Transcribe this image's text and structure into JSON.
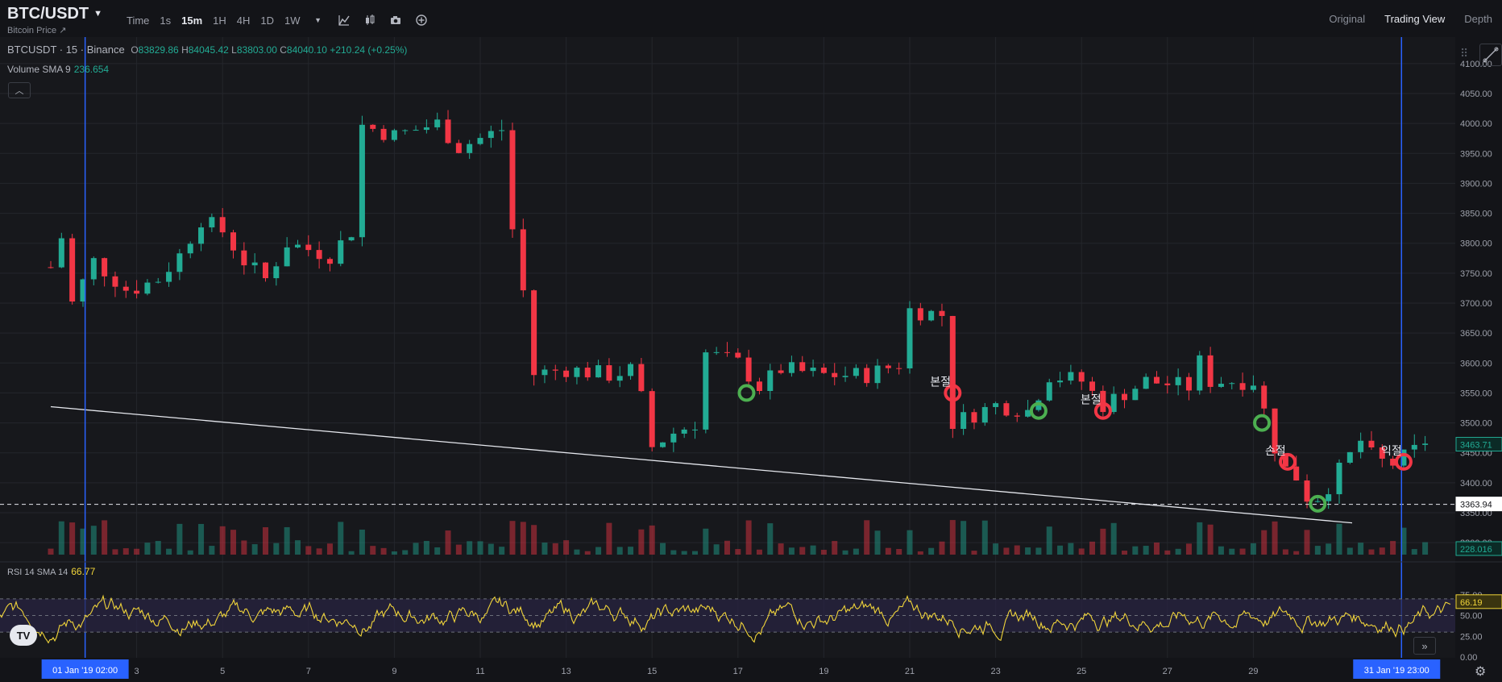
{
  "header": {
    "symbol": "BTC/USDT",
    "subtitle": "Bitcoin Price ↗",
    "timeframes": [
      "Time",
      "1s",
      "15m",
      "1H",
      "4H",
      "1D",
      "1W"
    ],
    "active_timeframe": "15m",
    "views": [
      "Original",
      "Trading View",
      "Depth"
    ],
    "active_view": "Trading View"
  },
  "legend": {
    "title": "BTCUSDT · 15 · Binance",
    "open": "83829.86",
    "high": "84045.42",
    "low": "83803.00",
    "close": "84040.10",
    "change": "+210.24 (+0.25%)",
    "volume_label": "Volume SMA 9",
    "volume_value": "236.654",
    "rsi_label": "RSI 14 SMA 14",
    "rsi_value": "66.77"
  },
  "price_axis": {
    "ticks": [
      "4100.00",
      "4050.00",
      "4000.00",
      "3950.00",
      "3900.00",
      "3850.00",
      "3800.00",
      "3750.00",
      "3700.00",
      "3650.00",
      "3600.00",
      "3550.00",
      "3500.00",
      "3450.00",
      "3400.00",
      "3350.00",
      "3300.00"
    ],
    "last_price": "3463.71",
    "marker_price": "3363.94",
    "volume_tag": "228.016"
  },
  "rsi_axis": {
    "ticks": [
      "75.00",
      "50.00",
      "25.00",
      "0.00"
    ],
    "current": "66.19"
  },
  "time_axis": {
    "ticks": [
      "3",
      "5",
      "7",
      "9",
      "11",
      "13",
      "15",
      "17",
      "19",
      "21",
      "23",
      "25",
      "27",
      "29"
    ],
    "start_label": "01 Jan '19   02:00",
    "end_label": "31 Jan '19   23:00"
  },
  "chart_data": {
    "type": "candlestick",
    "symbol": "BTCUSDT",
    "interval": "15",
    "ylim": [
      3280,
      4120
    ],
    "rsi_ylim": [
      0,
      100
    ],
    "close_path": [
      {
        "day": 0.0,
        "price": 3760
      },
      {
        "day": 0.3,
        "price": 3820
      },
      {
        "day": 0.5,
        "price": 3700
      },
      {
        "day": 1.0,
        "price": 3770
      },
      {
        "day": 1.8,
        "price": 3720
      },
      {
        "day": 2.5,
        "price": 3740
      },
      {
        "day": 3.0,
        "price": 3780
      },
      {
        "day": 3.5,
        "price": 3840
      },
      {
        "day": 4.0,
        "price": 3820
      },
      {
        "day": 4.5,
        "price": 3770
      },
      {
        "day": 5.0,
        "price": 3740
      },
      {
        "day": 5.5,
        "price": 3800
      },
      {
        "day": 6.0,
        "price": 3790
      },
      {
        "day": 6.5,
        "price": 3780
      },
      {
        "day": 7.0,
        "price": 3820
      },
      {
        "day": 7.1,
        "price": 4000
      },
      {
        "day": 8.0,
        "price": 3980
      },
      {
        "day": 9.0,
        "price": 4000
      },
      {
        "day": 9.5,
        "price": 3960
      },
      {
        "day": 10.5,
        "price": 3990
      },
      {
        "day": 10.8,
        "price": 3790
      },
      {
        "day": 11.0,
        "price": 3720
      },
      {
        "day": 11.1,
        "price": 3580
      },
      {
        "day": 12.0,
        "price": 3590
      },
      {
        "day": 13.0,
        "price": 3580
      },
      {
        "day": 13.6,
        "price": 3590
      },
      {
        "day": 14.0,
        "price": 3460
      },
      {
        "day": 14.4,
        "price": 3480
      },
      {
        "day": 15.0,
        "price": 3500
      },
      {
        "day": 15.1,
        "price": 3620
      },
      {
        "day": 16.0,
        "price": 3600
      },
      {
        "day": 16.5,
        "price": 3560
      },
      {
        "day": 17.0,
        "price": 3590
      },
      {
        "day": 18.0,
        "price": 3580
      },
      {
        "day": 19.0,
        "price": 3580
      },
      {
        "day": 19.8,
        "price": 3600
      },
      {
        "day": 19.9,
        "price": 3690
      },
      {
        "day": 20.8,
        "price": 3680
      },
      {
        "day": 20.9,
        "price": 3550
      },
      {
        "day": 21.0,
        "price": 3500
      },
      {
        "day": 22.0,
        "price": 3530
      },
      {
        "day": 22.8,
        "price": 3520
      },
      {
        "day": 23.2,
        "price": 3580
      },
      {
        "day": 24.0,
        "price": 3570
      },
      {
        "day": 24.5,
        "price": 3530
      },
      {
        "day": 25.5,
        "price": 3570
      },
      {
        "day": 26.5,
        "price": 3560
      },
      {
        "day": 26.8,
        "price": 3610
      },
      {
        "day": 27.0,
        "price": 3570
      },
      {
        "day": 28.0,
        "price": 3570
      },
      {
        "day": 28.4,
        "price": 3490
      },
      {
        "day": 28.6,
        "price": 3430
      },
      {
        "day": 29.0,
        "price": 3410
      },
      {
        "day": 29.3,
        "price": 3370
      },
      {
        "day": 29.6,
        "price": 3380
      },
      {
        "day": 30.0,
        "price": 3420
      },
      {
        "day": 30.5,
        "price": 3470
      },
      {
        "day": 30.8,
        "price": 3440
      },
      {
        "day": 31.2,
        "price": 3430
      },
      {
        "day": 31.7,
        "price": 3450
      },
      {
        "day": 32.0,
        "price": 3470
      }
    ],
    "trendline": {
      "from": {
        "day": 0.0,
        "price": 3527
      },
      "to": {
        "day": 30.3,
        "price": 3333
      }
    },
    "horizontal_line": 3363.94,
    "vertical_markers": [
      "01 Jan '19 02:00",
      "31 Jan '19 23:00"
    ],
    "annotations": [
      {
        "kind": "buy",
        "day": 16.2,
        "price": 3550,
        "label": ""
      },
      {
        "kind": "sell",
        "day": 21.0,
        "price": 3550,
        "label": "본절"
      },
      {
        "kind": "buy",
        "day": 23.0,
        "price": 3520,
        "label": ""
      },
      {
        "kind": "sell",
        "day": 24.5,
        "price": 3520,
        "label": "본절"
      },
      {
        "kind": "buy",
        "day": 28.2,
        "price": 3500,
        "label": ""
      },
      {
        "kind": "sell",
        "day": 28.8,
        "price": 3435,
        "label": "손절"
      },
      {
        "kind": "buy",
        "day": 29.5,
        "price": 3365,
        "label": ""
      },
      {
        "kind": "sell",
        "day": 31.5,
        "price": 3435,
        "label": "익절"
      }
    ],
    "colors": {
      "up": "#22ab94",
      "down": "#f23645",
      "rsi": "#f0d43a",
      "buy": "#4caf50",
      "sell": "#f23645",
      "marker": "#2962ff"
    }
  }
}
